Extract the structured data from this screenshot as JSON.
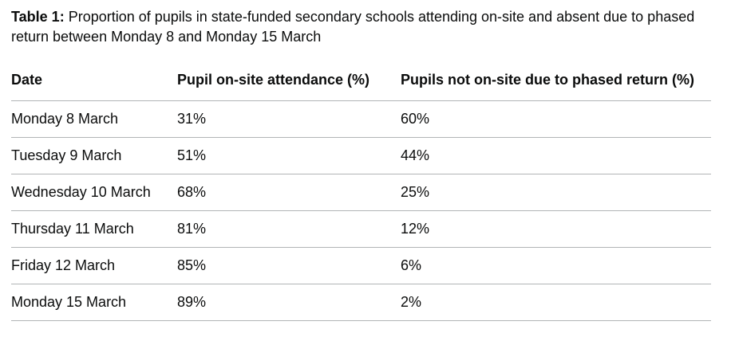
{
  "caption": {
    "label": "Table 1:",
    "text": "Proportion of pupils in state-funded secondary schools attending on-site and absent due to phased return between Monday 8 and Monday 15 March"
  },
  "table": {
    "headers": [
      "Date",
      "Pupil on-site attendance (%)",
      "Pupils not on-site due to phased return (%)"
    ],
    "rows": [
      [
        "Monday 8 March",
        "31%",
        "60%"
      ],
      [
        "Tuesday 9 March",
        "51%",
        "44%"
      ],
      [
        "Wednesday 10 March",
        "68%",
        "25%"
      ],
      [
        "Thursday 11 March",
        "81%",
        "12%"
      ],
      [
        "Friday 12 March",
        "85%",
        "6%"
      ],
      [
        "Monday 15 March",
        "89%",
        "2%"
      ]
    ]
  }
}
